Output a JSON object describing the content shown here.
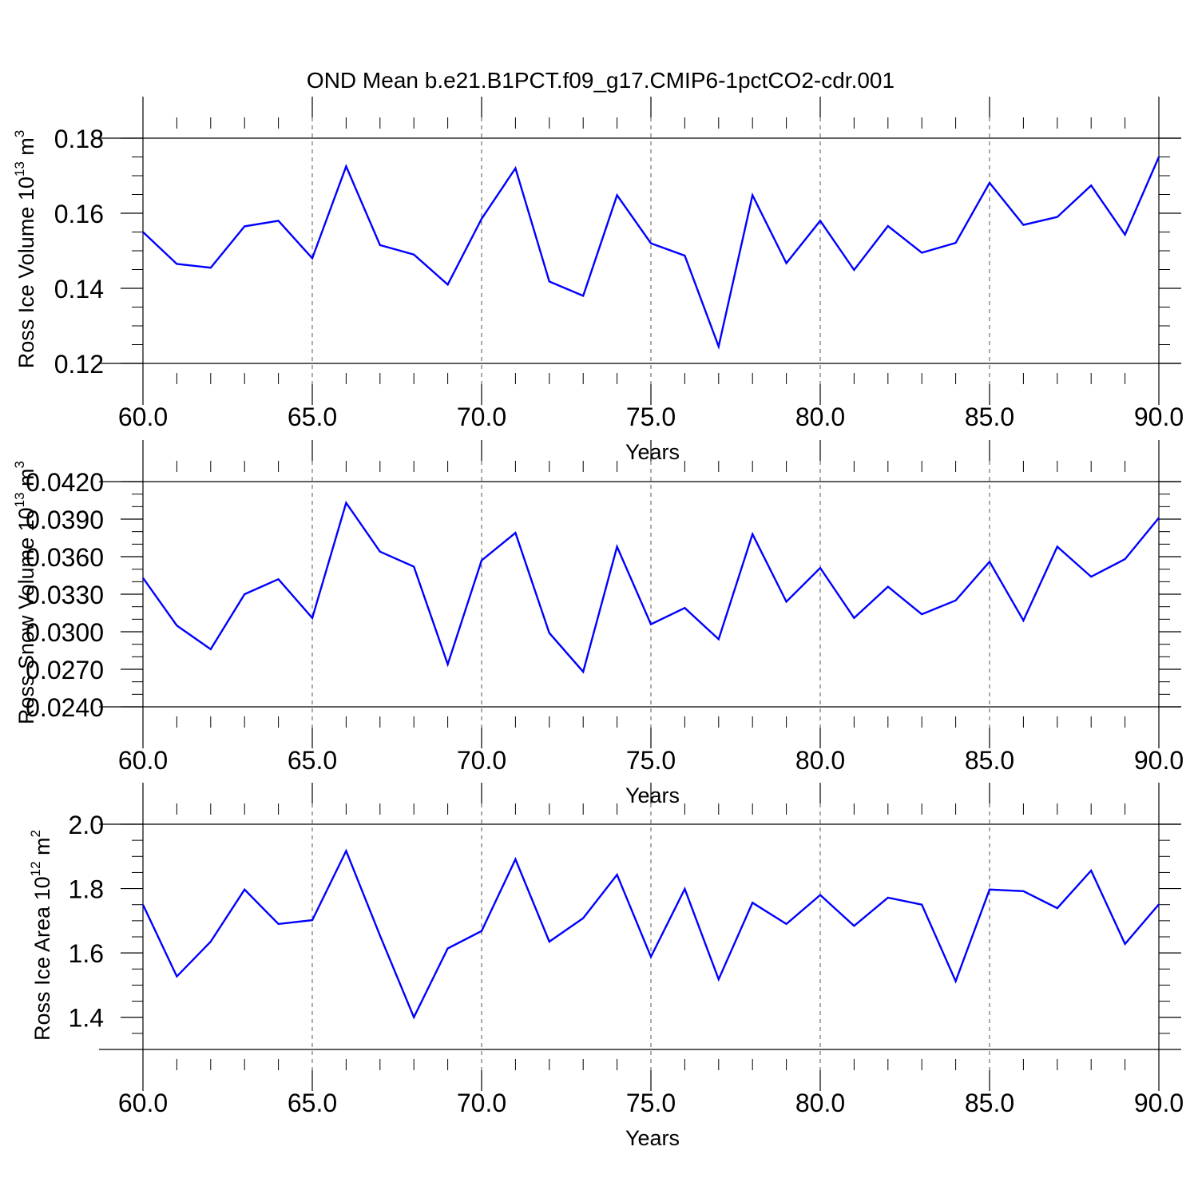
{
  "title": "OND Mean b.e21.B1PCT.f09_g17.CMIP6-1pctCO2-cdr.001",
  "colors": {
    "line": "#0000ff",
    "frame": "#000000",
    "grid": "#555555"
  },
  "chart_data": [
    {
      "type": "line",
      "xlabel": "Years",
      "ylabel": {
        "text": "Ross Ice Volume 10",
        "sup": "13",
        "unit": " m",
        "unit_sup": "3"
      },
      "xlim": [
        60,
        90
      ],
      "ylim": [
        0.12,
        0.18
      ],
      "yticks": [
        0.12,
        0.14,
        0.16,
        0.18
      ],
      "ytick_labels": [
        "0.12",
        "0.14",
        "0.16",
        "0.18"
      ],
      "yminor_step": 0.005,
      "xticks": [
        60,
        65,
        70,
        75,
        80,
        85,
        90
      ],
      "xtick_labels": [
        "60.0",
        "65.0",
        "70.0",
        "75.0",
        "80.0",
        "85.0",
        "90.0"
      ],
      "grid_x": true,
      "x": [
        60,
        61,
        62,
        63,
        64,
        65,
        66,
        67,
        68,
        69,
        70,
        71,
        72,
        73,
        74,
        75,
        76,
        77,
        78,
        79,
        80,
        81,
        82,
        83,
        84,
        85,
        86,
        87,
        88,
        89,
        90
      ],
      "values": [
        0.155,
        0.1465,
        0.1455,
        0.1565,
        0.158,
        0.148,
        0.1725,
        0.1515,
        0.149,
        0.141,
        0.1585,
        0.172,
        0.1418,
        0.138,
        0.1648,
        0.152,
        0.1487,
        0.1245,
        0.1648,
        0.1467,
        0.158,
        0.1449,
        0.1566,
        0.1495,
        0.1521,
        0.1681,
        0.1569,
        0.159,
        0.1674,
        0.1543,
        0.175
      ]
    },
    {
      "type": "line",
      "xlabel": "Years",
      "ylabel": {
        "text": "Ross Snow Volume 10",
        "sup": "13",
        "unit": " m",
        "unit_sup": "3"
      },
      "xlim": [
        60,
        90
      ],
      "ylim": [
        0.024,
        0.042
      ],
      "yticks": [
        0.024,
        0.027,
        0.03,
        0.033,
        0.036,
        0.039,
        0.042
      ],
      "ytick_labels": [
        "0.0240",
        "0.0270",
        "0.0300",
        "0.0330",
        "0.0360",
        "0.0390",
        "0.0420"
      ],
      "yminor_step": 0.001,
      "xticks": [
        60,
        65,
        70,
        75,
        80,
        85,
        90
      ],
      "xtick_labels": [
        "60.0",
        "65.0",
        "70.0",
        "75.0",
        "80.0",
        "85.0",
        "90.0"
      ],
      "grid_x": true,
      "x": [
        60,
        61,
        62,
        63,
        64,
        65,
        66,
        67,
        68,
        69,
        70,
        71,
        72,
        73,
        74,
        75,
        76,
        77,
        78,
        79,
        80,
        81,
        82,
        83,
        84,
        85,
        86,
        87,
        88,
        89,
        90
      ],
      "values": [
        0.0343,
        0.0305,
        0.0286,
        0.033,
        0.0342,
        0.0311,
        0.0403,
        0.0364,
        0.0352,
        0.0274,
        0.0357,
        0.0379,
        0.0299,
        0.0268,
        0.0368,
        0.0306,
        0.0319,
        0.0294,
        0.0378,
        0.0324,
        0.0351,
        0.0311,
        0.0336,
        0.0314,
        0.0325,
        0.0356,
        0.0309,
        0.0368,
        0.0344,
        0.0358,
        0.0391
      ]
    },
    {
      "type": "line",
      "xlabel": "Years",
      "ylabel": {
        "text": "Ross Ice Area 10",
        "sup": "12",
        "unit": " m",
        "unit_sup": "2"
      },
      "xlim": [
        60,
        90
      ],
      "ylim": [
        1.3,
        2.0
      ],
      "yticks": [
        1.4,
        1.6,
        1.8,
        2.0
      ],
      "ytick_labels": [
        "1.4",
        "1.6",
        "1.8",
        "2.0"
      ],
      "yminor_step": 0.05,
      "xticks": [
        60,
        65,
        70,
        75,
        80,
        85,
        90
      ],
      "xtick_labels": [
        "60.0",
        "65.0",
        "70.0",
        "75.0",
        "80.0",
        "85.0",
        "90.0"
      ],
      "grid_x": true,
      "x": [
        60,
        61,
        62,
        63,
        64,
        65,
        66,
        67,
        68,
        69,
        70,
        71,
        72,
        73,
        74,
        75,
        76,
        77,
        78,
        79,
        80,
        81,
        82,
        83,
        84,
        85,
        86,
        87,
        88,
        89,
        90
      ],
      "values": [
        1.75,
        1.527,
        1.635,
        1.797,
        1.69,
        1.702,
        1.917,
        1.654,
        1.4,
        1.614,
        1.668,
        1.891,
        1.635,
        1.708,
        1.843,
        1.588,
        1.799,
        1.518,
        1.756,
        1.69,
        1.78,
        1.684,
        1.772,
        1.75,
        1.512,
        1.797,
        1.792,
        1.739,
        1.856,
        1.628,
        1.751
      ]
    }
  ]
}
